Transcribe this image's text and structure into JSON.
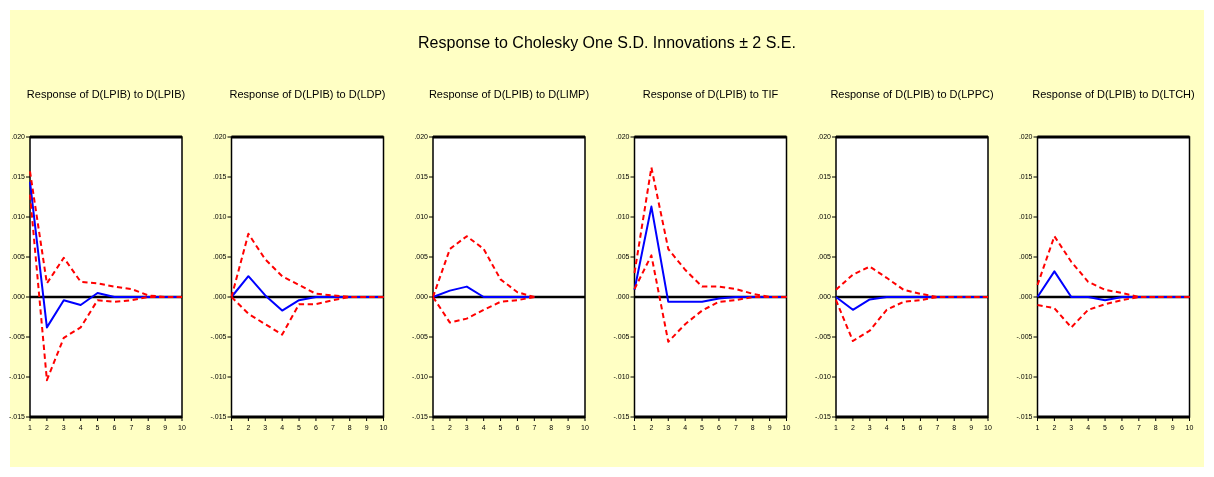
{
  "chart_data": [
    {
      "type": "line",
      "title": "Response of D(LPIB) to D(LPIB)",
      "annotations": [
        "Response to Cholesky One S.D. Innovations ± 2 S.E."
      ],
      "x": [
        1,
        2,
        3,
        4,
        5,
        6,
        7,
        8,
        9,
        10
      ],
      "xlim": [
        1,
        10
      ],
      "xticks": [
        1,
        2,
        3,
        4,
        5,
        6,
        7,
        8,
        9,
        10
      ],
      "ylim": [
        -0.015,
        0.02
      ],
      "yticks": [
        {
          "value": 0.02,
          "label": ".020"
        },
        {
          "value": 0.015,
          "label": ".015"
        },
        {
          "value": 0.01,
          "label": ".010"
        },
        {
          "value": 0.005,
          "label": ".005"
        },
        {
          "value": 0,
          "label": ".000"
        },
        {
          "value": -0.005,
          "label": "-.005"
        },
        {
          "value": -0.01,
          "label": "-.010"
        },
        {
          "value": -0.015,
          "label": "-.015"
        }
      ],
      "grid": false,
      "ref_lines": [
        {
          "axis": "y",
          "value": 0,
          "color": "#000000"
        }
      ],
      "series": [
        {
          "color": "#0000ff",
          "line_style": "solid",
          "values": [
            0.0144,
            -0.0038,
            -0.0004,
            -0.001,
            0.0005,
            0,
            0,
            0,
            0,
            0
          ]
        },
        {
          "color": "#ff0000",
          "line_style": "dashed",
          "values": [
            0.0157,
            0.0017,
            0.0049,
            0.0019,
            0.0017,
            0.0013,
            0.001,
            0.0002,
            0,
            0
          ]
        },
        {
          "color": "#ff0000",
          "line_style": "dashed",
          "values": [
            0.0128,
            -0.0104,
            -0.0051,
            -0.0038,
            -0.0004,
            -0.0006,
            -0.0004,
            0,
            0,
            0
          ]
        }
      ]
    },
    {
      "type": "line",
      "title": "Response of D(LPIB) to D(LDP)",
      "x": [
        1,
        2,
        3,
        4,
        5,
        6,
        7,
        8,
        9,
        10
      ],
      "xlim": [
        1,
        10
      ],
      "xticks": [
        1,
        2,
        3,
        4,
        5,
        6,
        7,
        8,
        9,
        10
      ],
      "ylim": [
        -0.015,
        0.02
      ],
      "yticks": [
        {
          "value": 0.02,
          "label": ".020"
        },
        {
          "value": 0.015,
          "label": ".015"
        },
        {
          "value": 0.01,
          "label": ".010"
        },
        {
          "value": 0.005,
          "label": ".005"
        },
        {
          "value": 0,
          "label": ".000"
        },
        {
          "value": -0.005,
          "label": "-.005"
        },
        {
          "value": -0.01,
          "label": "-.010"
        },
        {
          "value": -0.015,
          "label": "-.015"
        }
      ],
      "grid": false,
      "ref_lines": [
        {
          "axis": "y",
          "value": 0,
          "color": "#000000"
        }
      ],
      "series": [
        {
          "color": "#0000ff",
          "line_style": "solid",
          "values": [
            0,
            0.0026,
            0.0002,
            -0.0017,
            -0.0004,
            0,
            0,
            0,
            0,
            0
          ]
        },
        {
          "color": "#ff0000",
          "line_style": "dashed",
          "values": [
            0,
            0.0079,
            0.0047,
            0.0026,
            0.0015,
            0.0004,
            0.0002,
            0,
            0,
            0
          ]
        },
        {
          "color": "#ff0000",
          "line_style": "dashed",
          "values": [
            0,
            -0.0021,
            -0.0034,
            -0.0047,
            -0.0009,
            -0.0009,
            -0.0004,
            0,
            0,
            0
          ]
        }
      ]
    },
    {
      "type": "line",
      "title": "Response of D(LPIB) to D(LIMP)",
      "x": [
        1,
        2,
        3,
        4,
        5,
        6,
        7
      ],
      "xlim": [
        1,
        10
      ],
      "xticks": [
        1,
        2,
        3,
        4,
        5,
        6,
        7,
        8,
        9,
        10
      ],
      "ylim": [
        -0.015,
        0.02
      ],
      "yticks": [
        {
          "value": 0.02,
          "label": ".020"
        },
        {
          "value": 0.015,
          "label": ".015"
        },
        {
          "value": 0.01,
          "label": ".010"
        },
        {
          "value": 0.005,
          "label": ".005"
        },
        {
          "value": 0,
          "label": ".000"
        },
        {
          "value": -0.005,
          "label": "-.005"
        },
        {
          "value": -0.01,
          "label": "-.010"
        },
        {
          "value": -0.015,
          "label": "-.015"
        }
      ],
      "grid": false,
      "ref_lines": [
        {
          "axis": "y",
          "value": 0,
          "color": "#000000"
        }
      ],
      "series": [
        {
          "color": "#0000ff",
          "line_style": "solid",
          "values": [
            0,
            0.0008,
            0.0013,
            0,
            0,
            0,
            0
          ]
        },
        {
          "color": "#ff0000",
          "line_style": "dashed",
          "values": [
            0,
            0.006,
            0.0076,
            0.006,
            0.0022,
            0.0006,
            0
          ]
        },
        {
          "color": "#ff0000",
          "line_style": "dashed",
          "values": [
            0,
            -0.0032,
            -0.0027,
            -0.0016,
            -0.0006,
            -0.0004,
            0
          ]
        }
      ]
    },
    {
      "type": "line",
      "title": "Response of D(LPIB) to TIF",
      "x": [
        1,
        2,
        3,
        4,
        5,
        6,
        7,
        8,
        9,
        10
      ],
      "xlim": [
        1,
        10
      ],
      "xticks": [
        1,
        2,
        3,
        4,
        5,
        6,
        7,
        8,
        9,
        10
      ],
      "ylim": [
        -0.015,
        0.02
      ],
      "yticks": [
        {
          "value": 0.02,
          "label": ".020"
        },
        {
          "value": 0.015,
          "label": ".015"
        },
        {
          "value": 0.01,
          "label": ".010"
        },
        {
          "value": 0.005,
          "label": ".005"
        },
        {
          "value": 0,
          "label": ".000"
        },
        {
          "value": -0.005,
          "label": "-.005"
        },
        {
          "value": -0.01,
          "label": "-.010"
        },
        {
          "value": -0.015,
          "label": "-.015"
        }
      ],
      "grid": false,
      "ref_lines": [
        {
          "axis": "y",
          "value": 0,
          "color": "#000000"
        }
      ],
      "series": [
        {
          "color": "#0000ff",
          "line_style": "solid",
          "values": [
            0.0009,
            0.0113,
            -0.0006,
            -0.0006,
            -0.0006,
            -0.0002,
            0,
            0,
            0,
            0
          ]
        },
        {
          "color": "#ff0000",
          "line_style": "dashed",
          "values": [
            0.003,
            0.0162,
            0.006,
            0.0034,
            0.0013,
            0.0013,
            0.001,
            0.0004,
            0,
            0
          ]
        },
        {
          "color": "#ff0000",
          "line_style": "dashed",
          "values": [
            0.001,
            0.0052,
            -0.0056,
            -0.0034,
            -0.0017,
            -0.0006,
            -0.0004,
            0,
            0,
            0
          ]
        }
      ]
    },
    {
      "type": "line",
      "title": "Response of D(LPIB) to D(LPPC)",
      "x": [
        1,
        2,
        3,
        4,
        5,
        6,
        7,
        8,
        9,
        10
      ],
      "xlim": [
        1,
        10
      ],
      "xticks": [
        1,
        2,
        3,
        4,
        5,
        6,
        7,
        8,
        9,
        10
      ],
      "ylim": [
        -0.015,
        0.02
      ],
      "yticks": [
        {
          "value": 0.02,
          "label": ".020"
        },
        {
          "value": 0.015,
          "label": ".015"
        },
        {
          "value": 0.01,
          "label": ".010"
        },
        {
          "value": 0.005,
          "label": ".005"
        },
        {
          "value": 0,
          "label": ".000"
        },
        {
          "value": -0.005,
          "label": "-.005"
        },
        {
          "value": -0.01,
          "label": "-.010"
        },
        {
          "value": -0.015,
          "label": "-.015"
        }
      ],
      "grid": false,
      "ref_lines": [
        {
          "axis": "y",
          "value": 0,
          "color": "#000000"
        }
      ],
      "series": [
        {
          "color": "#0000ff",
          "line_style": "solid",
          "values": [
            0,
            -0.0016,
            -0.0003,
            0,
            0,
            0,
            0,
            0,
            0,
            0
          ]
        },
        {
          "color": "#ff0000",
          "line_style": "dashed",
          "values": [
            0.0009,
            0.0028,
            0.0038,
            0.0024,
            0.0009,
            0.0004,
            0,
            0,
            0,
            0
          ]
        },
        {
          "color": "#ff0000",
          "line_style": "dashed",
          "values": [
            -0.0004,
            -0.0055,
            -0.0042,
            -0.0016,
            -0.0006,
            -0.0004,
            0,
            0,
            0,
            0
          ]
        }
      ]
    },
    {
      "type": "line",
      "title": "Response of D(LPIB) to D(LTCH)",
      "x": [
        1,
        2,
        3,
        4,
        5,
        6,
        7,
        8,
        9,
        10
      ],
      "xlim": [
        1,
        10
      ],
      "xticks": [
        1,
        2,
        3,
        4,
        5,
        6,
        7,
        8,
        9,
        10
      ],
      "ylim": [
        -0.015,
        0.02
      ],
      "yticks": [
        {
          "value": 0.02,
          "label": ".020"
        },
        {
          "value": 0.015,
          "label": ".015"
        },
        {
          "value": 0.01,
          "label": ".010"
        },
        {
          "value": 0.005,
          "label": ".005"
        },
        {
          "value": 0,
          "label": ".000"
        },
        {
          "value": -0.005,
          "label": "-.005"
        },
        {
          "value": -0.01,
          "label": "-.010"
        },
        {
          "value": -0.015,
          "label": "-.015"
        }
      ],
      "grid": false,
      "ref_lines": [
        {
          "axis": "y",
          "value": 0,
          "color": "#000000"
        }
      ],
      "series": [
        {
          "color": "#0000ff",
          "line_style": "solid",
          "values": [
            0,
            0.0032,
            0,
            0,
            -0.0004,
            0,
            0,
            0,
            0,
            0
          ]
        },
        {
          "color": "#ff0000",
          "line_style": "dashed",
          "values": [
            0.0015,
            0.0076,
            0.0044,
            0.0019,
            0.0009,
            0.0005,
            0,
            0,
            0,
            0
          ]
        },
        {
          "color": "#ff0000",
          "line_style": "dashed",
          "values": [
            -0.001,
            -0.0014,
            -0.0038,
            -0.0016,
            -0.0009,
            -0.0004,
            0,
            0,
            0,
            0
          ]
        }
      ]
    }
  ]
}
